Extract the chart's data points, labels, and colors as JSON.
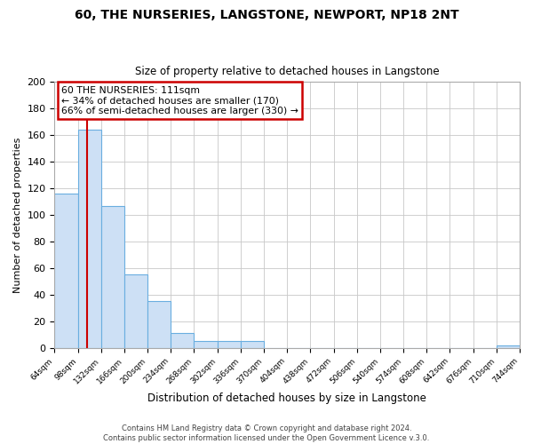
{
  "title": "60, THE NURSERIES, LANGSTONE, NEWPORT, NP18 2NT",
  "subtitle": "Size of property relative to detached houses in Langstone",
  "xlabel": "Distribution of detached houses by size in Langstone",
  "ylabel": "Number of detached properties",
  "bar_edges": [
    64,
    98,
    132,
    166,
    200,
    234,
    268,
    302,
    336,
    370,
    404,
    438,
    472,
    506,
    540,
    574,
    608,
    642,
    676,
    710,
    744
  ],
  "bar_heights": [
    116,
    164,
    107,
    55,
    35,
    11,
    5,
    5,
    5,
    0,
    0,
    0,
    0,
    0,
    0,
    0,
    0,
    0,
    0,
    2
  ],
  "bar_color": "#cde0f5",
  "bar_edge_color": "#6aaee0",
  "ylim": [
    0,
    200
  ],
  "yticks": [
    0,
    20,
    40,
    60,
    80,
    100,
    120,
    140,
    160,
    180,
    200
  ],
  "property_line_x": 111,
  "property_line_color": "#cc0000",
  "annotation_line1": "60 THE NURSERIES: 111sqm",
  "annotation_line2": "← 34% of detached houses are smaller (170)",
  "annotation_line3": "66% of semi-detached houses are larger (330) →",
  "footer_line1": "Contains HM Land Registry data © Crown copyright and database right 2024.",
  "footer_line2": "Contains public sector information licensed under the Open Government Licence v.3.0.",
  "background_color": "#ffffff",
  "grid_color": "#c8c8c8",
  "tick_labels": [
    "64sqm",
    "98sqm",
    "132sqm",
    "166sqm",
    "200sqm",
    "234sqm",
    "268sqm",
    "302sqm",
    "336sqm",
    "370sqm",
    "404sqm",
    "438sqm",
    "472sqm",
    "506sqm",
    "540sqm",
    "574sqm",
    "608sqm",
    "642sqm",
    "676sqm",
    "710sqm",
    "744sqm"
  ]
}
